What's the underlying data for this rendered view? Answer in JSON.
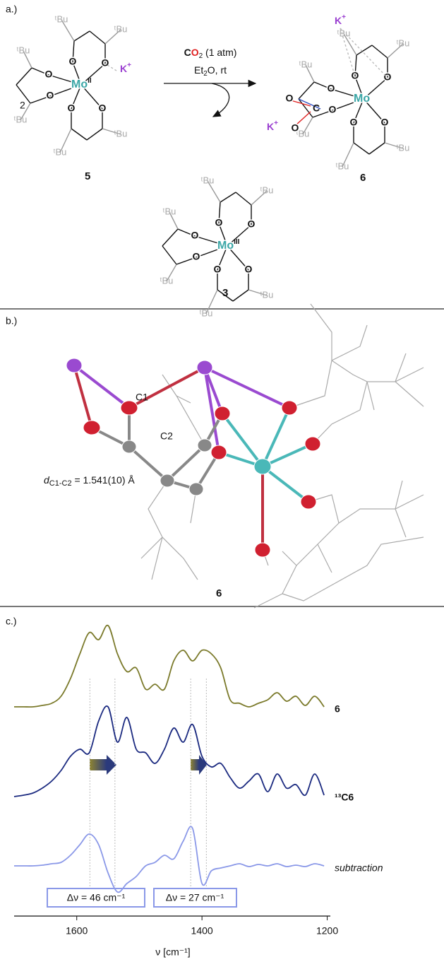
{
  "panel_a": {
    "label": "a.)",
    "coefficient": "2",
    "reagent": {
      "c": "C",
      "o": "O",
      "sub": "2",
      "rest": " (1 atm)"
    },
    "conditions": {
      "et": "Et",
      "sub": "2",
      "rest": "O, rt"
    },
    "atoms": {
      "tbu": "ᵗBu",
      "o": "O",
      "mo": "Mo",
      "k": "K",
      "plus": "+",
      "c": "C"
    },
    "oxidation_states": [
      "II",
      "III"
    ],
    "compounds": [
      "5",
      "6",
      "3"
    ]
  },
  "panel_b": {
    "label": "b.)",
    "atom_labels": [
      "C1",
      "C2"
    ],
    "distance": {
      "symbol": "d",
      "subscript": "C1-C2",
      "value": " = 1.541(10) Å"
    },
    "compound": "6"
  },
  "chart_data": {
    "type": "line",
    "label": "c.)",
    "xlabel": "ν [cm⁻¹]",
    "x": [
      1700,
      1685,
      1670,
      1655,
      1640,
      1625,
      1610,
      1595,
      1580,
      1565,
      1550,
      1535,
      1520,
      1505,
      1490,
      1475,
      1460,
      1445,
      1430,
      1415,
      1400,
      1385,
      1370,
      1355,
      1340,
      1325,
      1310,
      1295,
      1280,
      1265,
      1250,
      1235,
      1220,
      1205
    ],
    "xlim": [
      1700,
      1195
    ],
    "xticks": [
      1600,
      1400,
      1200
    ],
    "ylim": [
      -6,
      410
    ],
    "series": [
      {
        "name": "6",
        "color": "#7b7a2b",
        "values": [
          290,
          290,
          290,
          292,
          295,
          305,
          330,
          365,
          395,
          385,
          405,
          365,
          340,
          345,
          315,
          322,
          315,
          355,
          370,
          355,
          370,
          365,
          345,
          300,
          295,
          290,
          295,
          300,
          310,
          298,
          305,
          292,
          305,
          290
        ]
      },
      {
        "name": "¹³C6",
        "color": "#1b2a80",
        "values": [
          163,
          165,
          168,
          175,
          185,
          200,
          220,
          230,
          225,
          270,
          290,
          240,
          275,
          230,
          225,
          210,
          230,
          260,
          240,
          265,
          220,
          205,
          210,
          190,
          175,
          185,
          195,
          170,
          195,
          175,
          180,
          165,
          195,
          165
        ]
      },
      {
        "name": "subtraction",
        "color": "#8a98e8",
        "values": [
          65,
          65,
          65,
          66,
          68,
          70,
          80,
          95,
          110,
          95,
          55,
          28,
          40,
          50,
          65,
          70,
          80,
          75,
          100,
          118,
          40,
          58,
          62,
          65,
          68,
          64,
          67,
          65,
          68,
          64,
          66,
          64,
          68,
          65
        ]
      }
    ],
    "reference_lines": [
      1579,
      1539,
      1418,
      1393
    ],
    "annotations": [
      "Δν = 46 cm⁻¹",
      "Δν = 27 cm⁻¹"
    ]
  }
}
